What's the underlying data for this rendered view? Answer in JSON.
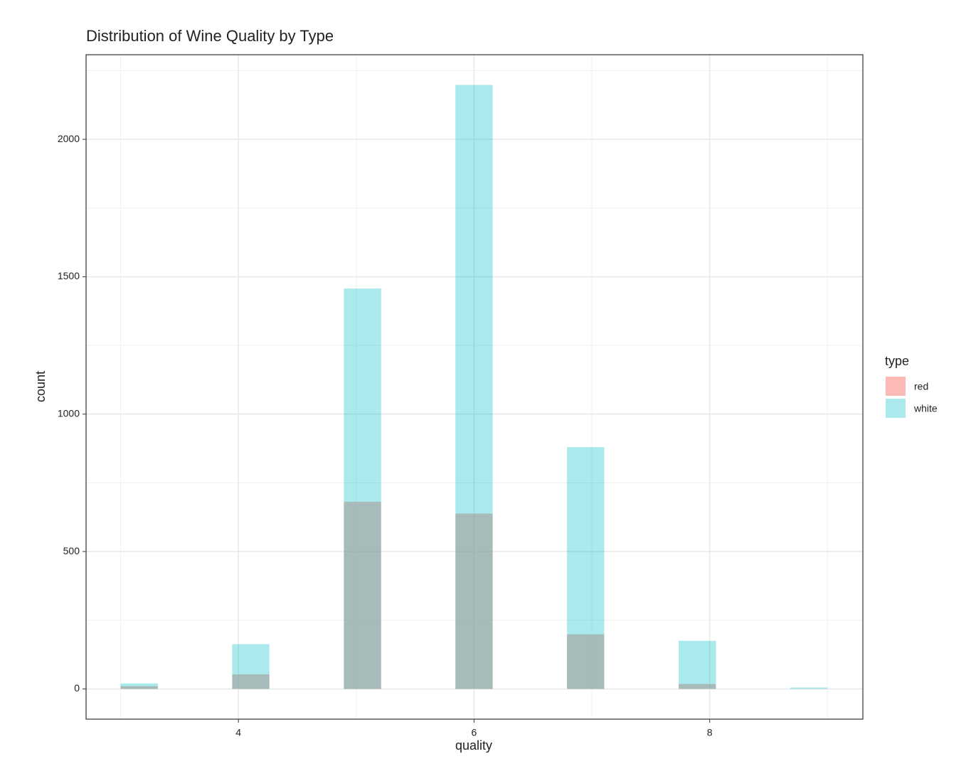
{
  "chart_data": {
    "type": "histogram",
    "title": "Distribution of Wine Quality by Type",
    "x_label": "quality",
    "y_label": "count",
    "legend_title": "type",
    "bins": [
      3,
      3.316,
      3.632,
      3.947,
      4.263,
      4.579,
      4.895,
      5.211,
      5.526,
      5.842,
      6.158,
      6.474,
      6.789,
      7.105,
      7.421,
      7.737,
      8.053,
      8.368,
      8.684,
      9
    ],
    "series": [
      {
        "name": "red",
        "color": "#F8766D",
        "opacity": 0.5,
        "values": [
          10,
          0,
          0,
          53,
          0,
          0,
          681,
          0,
          0,
          638,
          0,
          0,
          199,
          0,
          0,
          18,
          0,
          0,
          0
        ]
      },
      {
        "name": "white",
        "color": "#00BFC4",
        "opacity": 0.33,
        "values": [
          20,
          0,
          0,
          163,
          0,
          0,
          1457,
          0,
          0,
          2198,
          0,
          0,
          880,
          0,
          0,
          175,
          0,
          0,
          5
        ]
      }
    ],
    "xlim": [
      2.707,
      9.3
    ],
    "xticks": [
      4,
      6,
      8
    ],
    "x_minor_grid": [
      3,
      5,
      7,
      9
    ],
    "ylim": [
      -110,
      2308
    ],
    "yticks": [
      0,
      500,
      1000,
      1500,
      2000
    ],
    "y_minor_grid": [
      250,
      750,
      1250,
      1750,
      2250
    ],
    "grid": true,
    "legend": "right"
  }
}
